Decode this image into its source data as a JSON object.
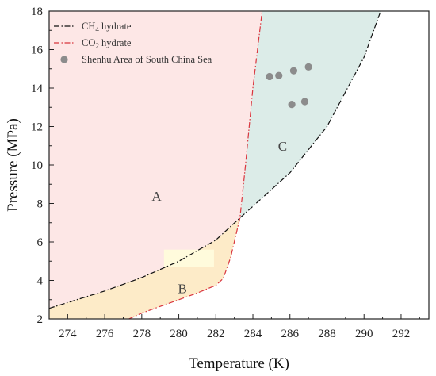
{
  "chart_data": {
    "type": "line",
    "xlabel": "Temperature (K)",
    "ylabel": "Pressure (MPa)",
    "xlim": [
      273,
      293.5
    ],
    "ylim": [
      2,
      18
    ],
    "xticks": [
      274,
      276,
      278,
      280,
      282,
      284,
      286,
      288,
      290,
      292
    ],
    "yticks": [
      2,
      4,
      6,
      8,
      10,
      12,
      14,
      16,
      18
    ],
    "legend_position": "top-left",
    "grid": false,
    "series": [
      {
        "name": "CH",
        "name_sub": "4",
        "name_suffix": " hydrate",
        "style": "dash-dot",
        "color": "#111111",
        "points": [
          [
            273,
            2.55
          ],
          [
            274,
            2.85
          ],
          [
            276,
            3.45
          ],
          [
            278,
            4.15
          ],
          [
            280,
            5.0
          ],
          [
            282,
            6.1
          ],
          [
            283.3,
            7.25
          ],
          [
            284,
            7.85
          ],
          [
            286,
            9.6
          ],
          [
            288,
            12.0
          ],
          [
            290,
            15.6
          ],
          [
            290.9,
            18.0
          ]
        ]
      },
      {
        "name": "CO",
        "name_sub": "2",
        "name_suffix": " hydrate",
        "style": "dash-dot",
        "color": "#d9363e",
        "points": [
          [
            277.3,
            2.0
          ],
          [
            278,
            2.3
          ],
          [
            279,
            2.65
          ],
          [
            280,
            3.0
          ],
          [
            281,
            3.35
          ],
          [
            282,
            3.75
          ],
          [
            282.4,
            4.1
          ],
          [
            282.8,
            5.2
          ],
          [
            283.3,
            7.25
          ],
          [
            283.6,
            10.0
          ],
          [
            284.0,
            14.0
          ],
          [
            284.5,
            18.0
          ]
        ]
      },
      {
        "name": "Shenhu Area of South China Sea",
        "type": "scatter",
        "color": "#8c8c8c",
        "points": [
          [
            284.9,
            14.6
          ],
          [
            285.4,
            14.65
          ],
          [
            286.2,
            14.9
          ],
          [
            287.0,
            15.1
          ],
          [
            286.1,
            13.15
          ],
          [
            286.8,
            13.3
          ]
        ]
      }
    ],
    "regions": [
      {
        "label": "A",
        "x": 278.8,
        "y": 8.3,
        "color": "#fde7e6"
      },
      {
        "label": "B",
        "x": 280.2,
        "y": 3.5,
        "color": "#fdebc8"
      },
      {
        "label": "C",
        "x": 285.6,
        "y": 10.9,
        "color": "#dcece8"
      }
    ]
  }
}
